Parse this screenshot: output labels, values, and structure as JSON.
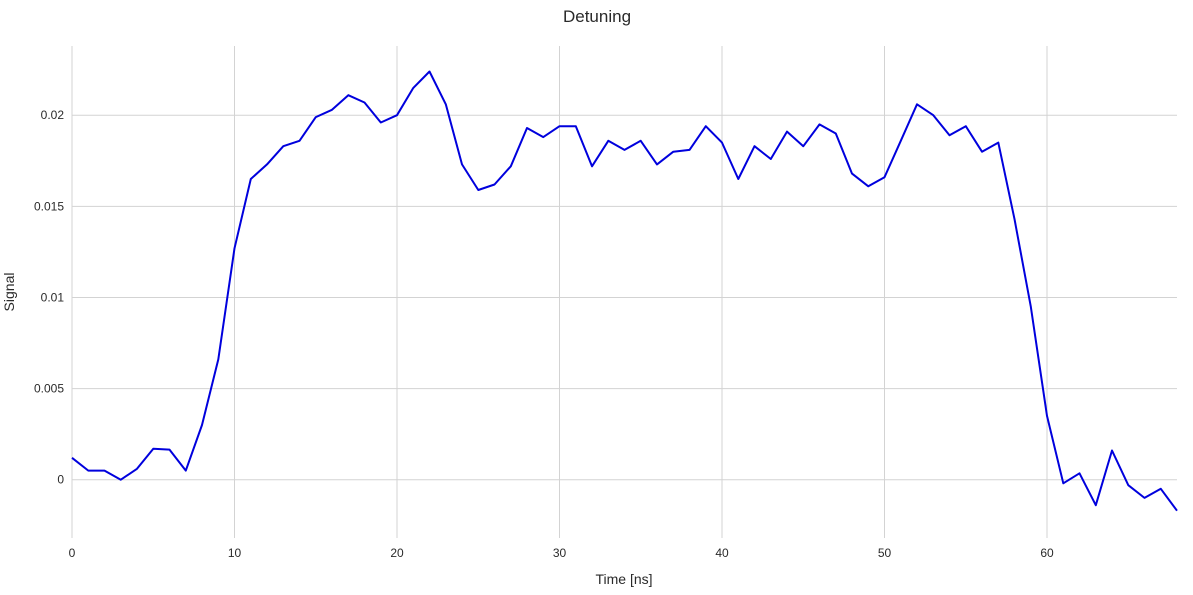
{
  "chart_data": {
    "type": "line",
    "title": "Detuning",
    "xlabel": "Time [ns]",
    "ylabel": "Signal",
    "xlim": [
      0,
      68
    ],
    "ylim": [
      -0.0032,
      0.0238
    ],
    "grid": true,
    "x_ticks": [
      0,
      10,
      20,
      30,
      40,
      50,
      60
    ],
    "y_ticks": [
      0,
      0.005,
      0.01,
      0.015,
      0.02
    ],
    "y_tick_labels": [
      "0",
      "0.005",
      "0.01",
      "0.015",
      "0.02"
    ],
    "series": [
      {
        "color": "#0000dd",
        "x": [
          0,
          1,
          2,
          3,
          4,
          5,
          6,
          7,
          8,
          9,
          10,
          11,
          12,
          13,
          14,
          15,
          16,
          17,
          18,
          19,
          20,
          21,
          22,
          23,
          24,
          25,
          26,
          27,
          28,
          29,
          30,
          31,
          32,
          33,
          34,
          35,
          36,
          37,
          38,
          39,
          40,
          41,
          42,
          43,
          44,
          45,
          46,
          47,
          48,
          49,
          50,
          51,
          52,
          53,
          54,
          55,
          56,
          57,
          58,
          59,
          60,
          61,
          62,
          63,
          64,
          65,
          66,
          67,
          68
        ],
        "y": [
          0.0012,
          0.0005,
          0.0005,
          0.0,
          0.0006,
          0.0017,
          0.00165,
          0.0005,
          0.003,
          0.0066,
          0.0127,
          0.0165,
          0.0173,
          0.0183,
          0.0186,
          0.0199,
          0.0203,
          0.0211,
          0.0207,
          0.0196,
          0.02,
          0.0215,
          0.0224,
          0.0206,
          0.0173,
          0.0159,
          0.0162,
          0.0172,
          0.0193,
          0.0188,
          0.0194,
          0.0194,
          0.0172,
          0.0186,
          0.0181,
          0.0186,
          0.0173,
          0.018,
          0.0181,
          0.0194,
          0.0185,
          0.0165,
          0.0183,
          0.0176,
          0.0191,
          0.0183,
          0.0195,
          0.019,
          0.0168,
          0.0161,
          0.0166,
          0.0186,
          0.0206,
          0.02,
          0.0189,
          0.0194,
          0.018,
          0.0185,
          0.0143,
          0.0095,
          0.0035,
          -0.0002,
          0.00035,
          -0.0014,
          0.0016,
          -0.0003,
          -0.001,
          -0.0005,
          -0.0017
        ]
      }
    ]
  }
}
